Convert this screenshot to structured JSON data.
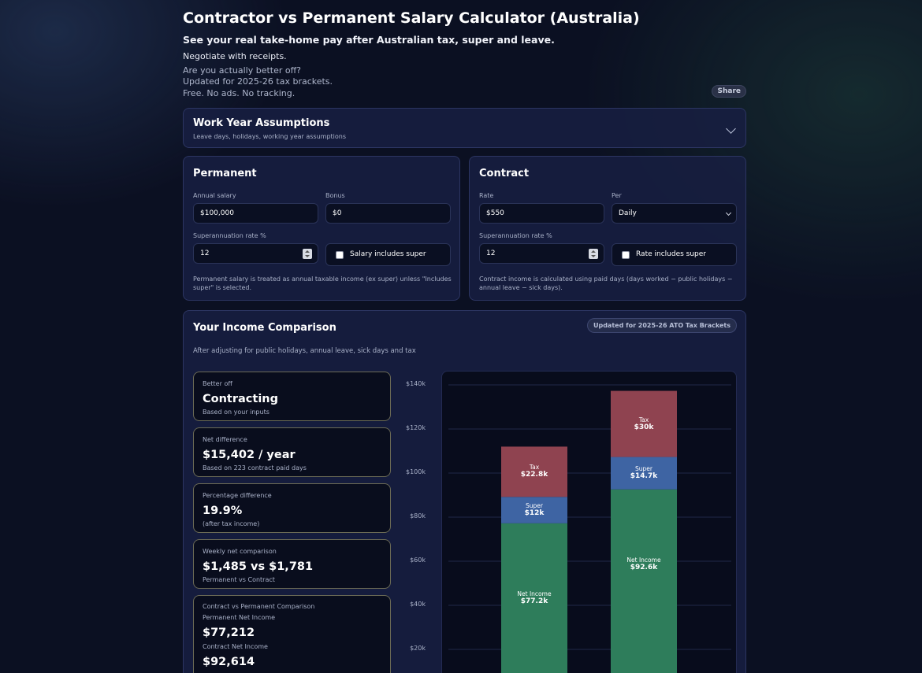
{
  "header": {
    "title": "Contractor vs Permanent Salary Calculator (Australia)",
    "subtitle": "See your real take-home pay after Australian tax, super and leave.",
    "tagline": "Negotiate with receipts.",
    "notes": [
      "Are you actually better off?",
      "Updated for 2025-26 tax brackets.",
      "Free. No ads. No tracking."
    ],
    "share_label": "Share"
  },
  "assumptions": {
    "title": "Work Year Assumptions",
    "subtitle": "Leave days, holidays, working year assumptions"
  },
  "permanent": {
    "title": "Permanent",
    "salary_label": "Annual salary",
    "salary_value": "$100,000",
    "bonus_label": "Bonus",
    "bonus_value": "$0",
    "super_label": "Superannuation rate %",
    "super_value": "12",
    "includes_super_label": "Salary includes super",
    "includes_super_checked": false,
    "helper": "Permanent salary is treated as annual taxable income (ex super) unless \"Includes super\" is selected."
  },
  "contract": {
    "title": "Contract",
    "rate_label": "Rate",
    "rate_value": "$550",
    "per_label": "Per",
    "per_value": "Daily",
    "super_label": "Superannuation rate %",
    "super_value": "12",
    "includes_super_label": "Rate includes super",
    "includes_super_checked": false,
    "helper": "Contract income is calculated using paid days (days worked − public holidays − annual leave − sick days)."
  },
  "comparison": {
    "title": "Your Income Comparison",
    "badge": "Updated for 2025-26 ATO Tax Brackets",
    "subtitle": "After adjusting for public holidays, annual leave, sick days and tax",
    "stats": [
      {
        "label": "Better off",
        "value": "Contracting",
        "sub": "Based on your inputs"
      },
      {
        "label": "Net difference",
        "value": "$15,402 / year",
        "sub": "Based on 223 contract paid days"
      },
      {
        "label": "Percentage difference",
        "value": "19.9%",
        "sub": "(after tax income)"
      },
      {
        "label": "Weekly net comparison",
        "value": "$1,485 vs $1,781",
        "sub": "Permanent vs Contract"
      }
    ],
    "detail": {
      "label": "Contract vs Permanent Comparison",
      "perm_label": "Permanent Net Income",
      "perm_value": "$77,212",
      "contract_label": "Contract Net Income",
      "contract_value": "$92,614"
    }
  },
  "colors": {
    "net": "#2e7d5b",
    "super": "#3e64a3",
    "tax": "#8f4350"
  },
  "chart_data": {
    "type": "bar",
    "stacked": true,
    "categories": [
      "",
      ""
    ],
    "series": [
      {
        "name": "Net Income",
        "values": [
          77.2,
          92.6
        ],
        "labels": [
          "$77.2k",
          "$92.6k"
        ]
      },
      {
        "name": "Super",
        "values": [
          12,
          14.7
        ],
        "labels": [
          "$12k",
          "$14.7k"
        ]
      },
      {
        "name": "Tax",
        "values": [
          22.8,
          30
        ],
        "labels": [
          "$22.8k",
          "$30k"
        ]
      }
    ],
    "yticks": [
      "$20k",
      "$40k",
      "$60k",
      "$80k",
      "$100k",
      "$120k",
      "$140k"
    ],
    "ytick_values": [
      20,
      40,
      60,
      80,
      100,
      120,
      140
    ],
    "ylim": [
      0,
      140
    ],
    "grid": true
  }
}
